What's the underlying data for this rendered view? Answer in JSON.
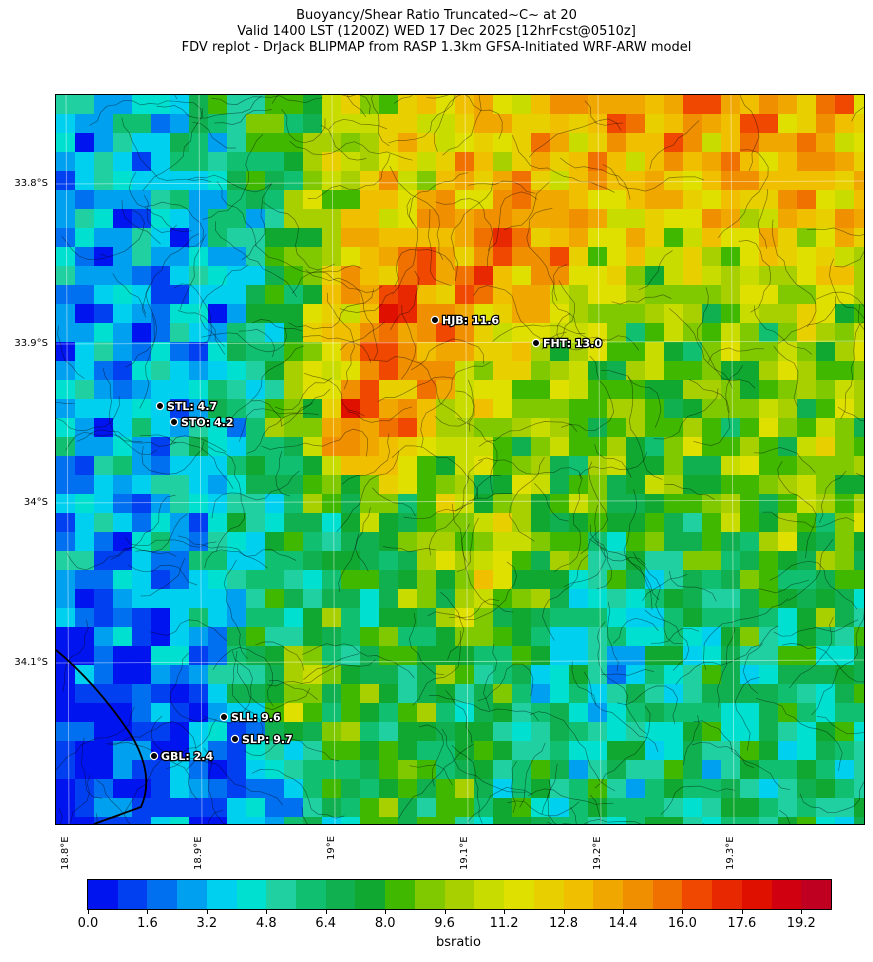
{
  "title": {
    "line1": "Buoyancy/Shear Ratio Truncated~C~    at 20",
    "line2": "Valid 1400 LST (1200Z) WED 17 Dec 2025 [12hrFcst@0510z]",
    "line3": "FDV replot - DrJack BLIPMAP from RASP 1.3km GFSA-Initiated WRF-ARW model"
  },
  "axes": {
    "lat_labels": [
      "33.8°S",
      "33.9°S",
      "34°S",
      "34.1°S"
    ],
    "lon_labels": [
      "18.8°E",
      "18.9°E",
      "19°E",
      "19.1°E",
      "19.2°E",
      "19.3°E"
    ]
  },
  "stations": [
    {
      "id": "HJB",
      "label": "HJB: 11.6",
      "value": 11.6
    },
    {
      "id": "FHT",
      "label": "FHT: 13.0",
      "value": 13.0
    },
    {
      "id": "STL",
      "label": "STL: 4.7",
      "value": 4.7
    },
    {
      "id": "STO",
      "label": "STO: 4.2",
      "value": 4.2
    },
    {
      "id": "SLL",
      "label": "SLL: 9.6",
      "value": 9.6
    },
    {
      "id": "SLP",
      "label": "SLP: 9.7",
      "value": 9.7
    },
    {
      "id": "GBL",
      "label": "GBL: 2.4",
      "value": 2.4
    }
  ],
  "colorbar": {
    "title": "bsratio",
    "tick_labels": [
      "0.0",
      "1.6",
      "3.2",
      "4.8",
      "6.4",
      "8.0",
      "9.6",
      "11.2",
      "12.8",
      "14.4",
      "16.0",
      "17.6",
      "19.2"
    ],
    "colors": [
      "#0014f0",
      "#0040f0",
      "#0070f0",
      "#00a0f0",
      "#00d0f0",
      "#00e0d0",
      "#20d0a0",
      "#10c070",
      "#10b050",
      "#10a830",
      "#40b800",
      "#80c800",
      "#a8d000",
      "#c8dc00",
      "#e0e000",
      "#e8d000",
      "#f0c000",
      "#f0a800",
      "#f09000",
      "#f07000",
      "#f04800",
      "#e82800",
      "#e01000",
      "#d00010",
      "#c00020"
    ]
  }
}
